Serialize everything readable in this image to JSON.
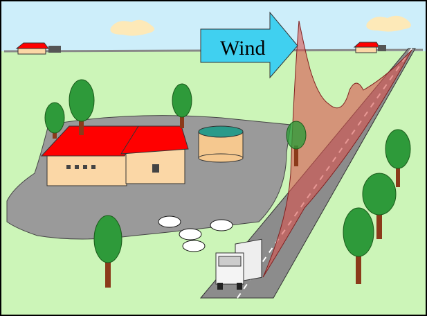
{
  "labels": {
    "wind": "Wind"
  }
}
